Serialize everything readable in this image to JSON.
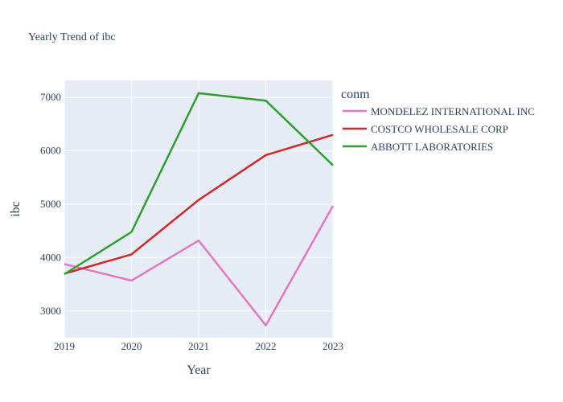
{
  "chart_data": {
    "type": "line",
    "title": "Yearly Trend of ibc",
    "xlabel": "Year",
    "ylabel": "ibc",
    "x": [
      2019,
      2020,
      2021,
      2022,
      2023
    ],
    "xlim": [
      2019,
      2023
    ],
    "ylim": [
      2500,
      7320
    ],
    "yticks": [
      3000,
      4000,
      5000,
      6000,
      7000
    ],
    "grid": true,
    "legend_title": "conm",
    "legend_position": "right",
    "series": [
      {
        "name": "MONDELEZ INTERNATIONAL INC",
        "color": "#e377c2",
        "values": [
          3880,
          3570,
          4320,
          2730,
          4970
        ]
      },
      {
        "name": "COSTCO WHOLESALE CORP",
        "color": "#d62728",
        "values": [
          3700,
          4060,
          5080,
          5920,
          6300
        ]
      },
      {
        "name": "ABBOTT LABORATORIES",
        "color": "#2ca02c",
        "values": [
          3690,
          4480,
          7080,
          6940,
          5730
        ]
      }
    ]
  }
}
